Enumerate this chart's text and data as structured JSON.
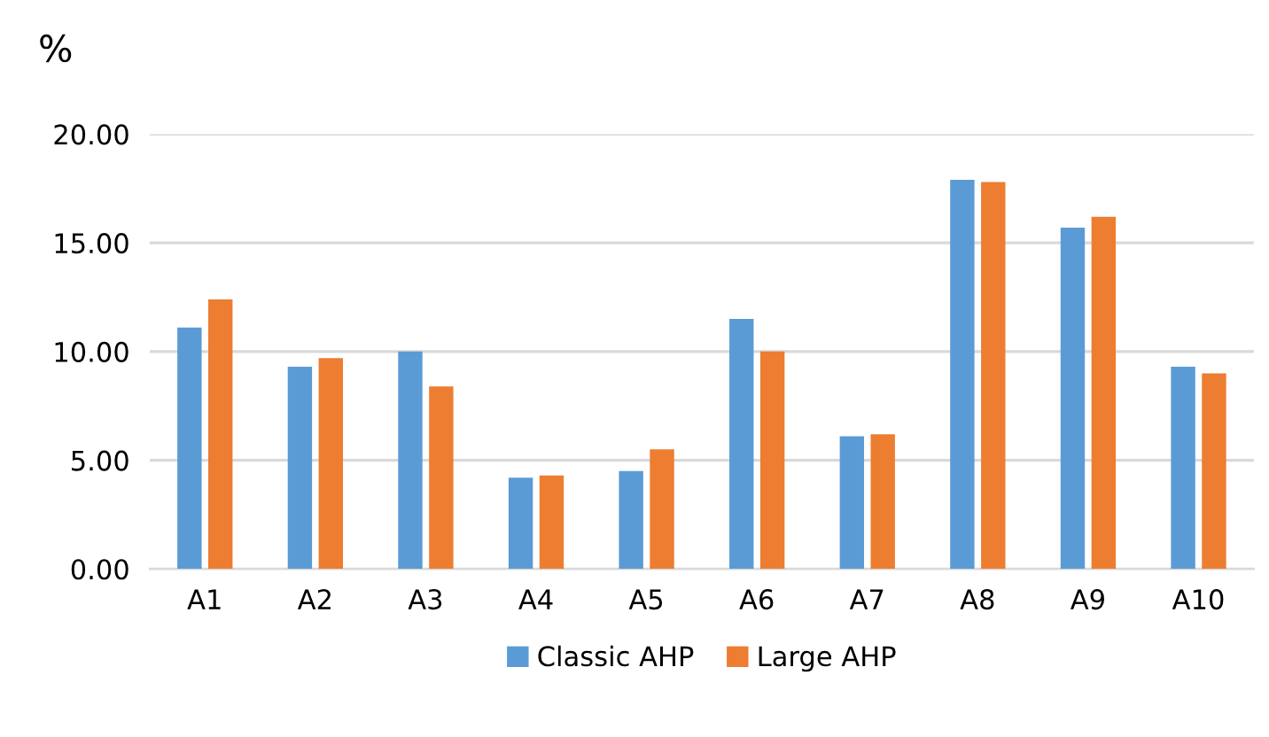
{
  "chart_data": {
    "type": "bar",
    "ylabel": "%",
    "categories": [
      "A1",
      "A2",
      "A3",
      "A4",
      "A5",
      "A6",
      "A7",
      "A8",
      "A9",
      "A10"
    ],
    "series": [
      {
        "name": "Classic AHP",
        "color": "#5b9bd5",
        "values": [
          11.1,
          9.3,
          10.0,
          4.2,
          4.5,
          11.5,
          6.1,
          17.9,
          15.7,
          9.3
        ]
      },
      {
        "name": "Large AHP",
        "color": "#ed7d31",
        "values": [
          12.4,
          9.7,
          8.4,
          4.3,
          5.5,
          10.0,
          6.2,
          17.8,
          16.2,
          9.0
        ]
      }
    ],
    "ylim": [
      0,
      20
    ],
    "yticks": [
      {
        "value": 0,
        "label": "0.00"
      },
      {
        "value": 5,
        "label": "5.00"
      },
      {
        "value": 10,
        "label": "10.00"
      },
      {
        "value": 15,
        "label": "15.00"
      },
      {
        "value": 20,
        "label": "20.00"
      }
    ],
    "grid": "y",
    "legend": "bottom"
  }
}
